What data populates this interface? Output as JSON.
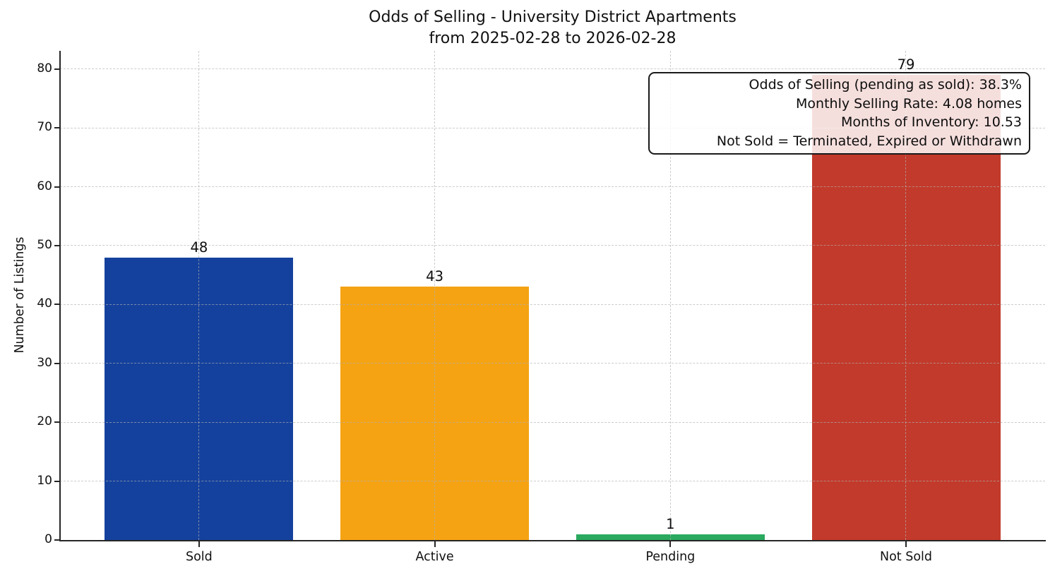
{
  "chart_data": {
    "type": "bar",
    "title_line1": "Odds of Selling - University District Apartments",
    "title_line2": "from 2025-02-28 to 2026-02-28",
    "ylabel": "Number of Listings",
    "xlabel": "",
    "categories": [
      "Sold",
      "Active",
      "Pending",
      "Not Sold"
    ],
    "values": [
      48,
      43,
      1,
      79
    ],
    "bar_value_labels": [
      "48",
      "43",
      "1",
      "79"
    ],
    "bar_colors": [
      "#14419d",
      "#f5a313",
      "#2aa95f",
      "#c23a2b"
    ],
    "yticks": [
      0,
      10,
      20,
      30,
      40,
      50,
      60,
      70,
      80
    ],
    "ylim": [
      0,
      83.1
    ],
    "grid": "dashed horizontal and vertical, light gray, drawn over bars",
    "legend": "none",
    "annotation_lines": [
      "Odds of Selling (pending as sold): 38.3%",
      "Monthly Selling Rate: 4.08 homes",
      "Months of Inventory: 10.53",
      "Not Sold = Terminated, Expired or Withdrawn"
    ]
  },
  "colors": {
    "background": "#ffffff",
    "spine": "#262626",
    "grid": "#b9b9b9",
    "text": "#111111",
    "annotation_border": "#1a1a1a",
    "annotation_background": "rgba(255,255,255,0.84)"
  }
}
